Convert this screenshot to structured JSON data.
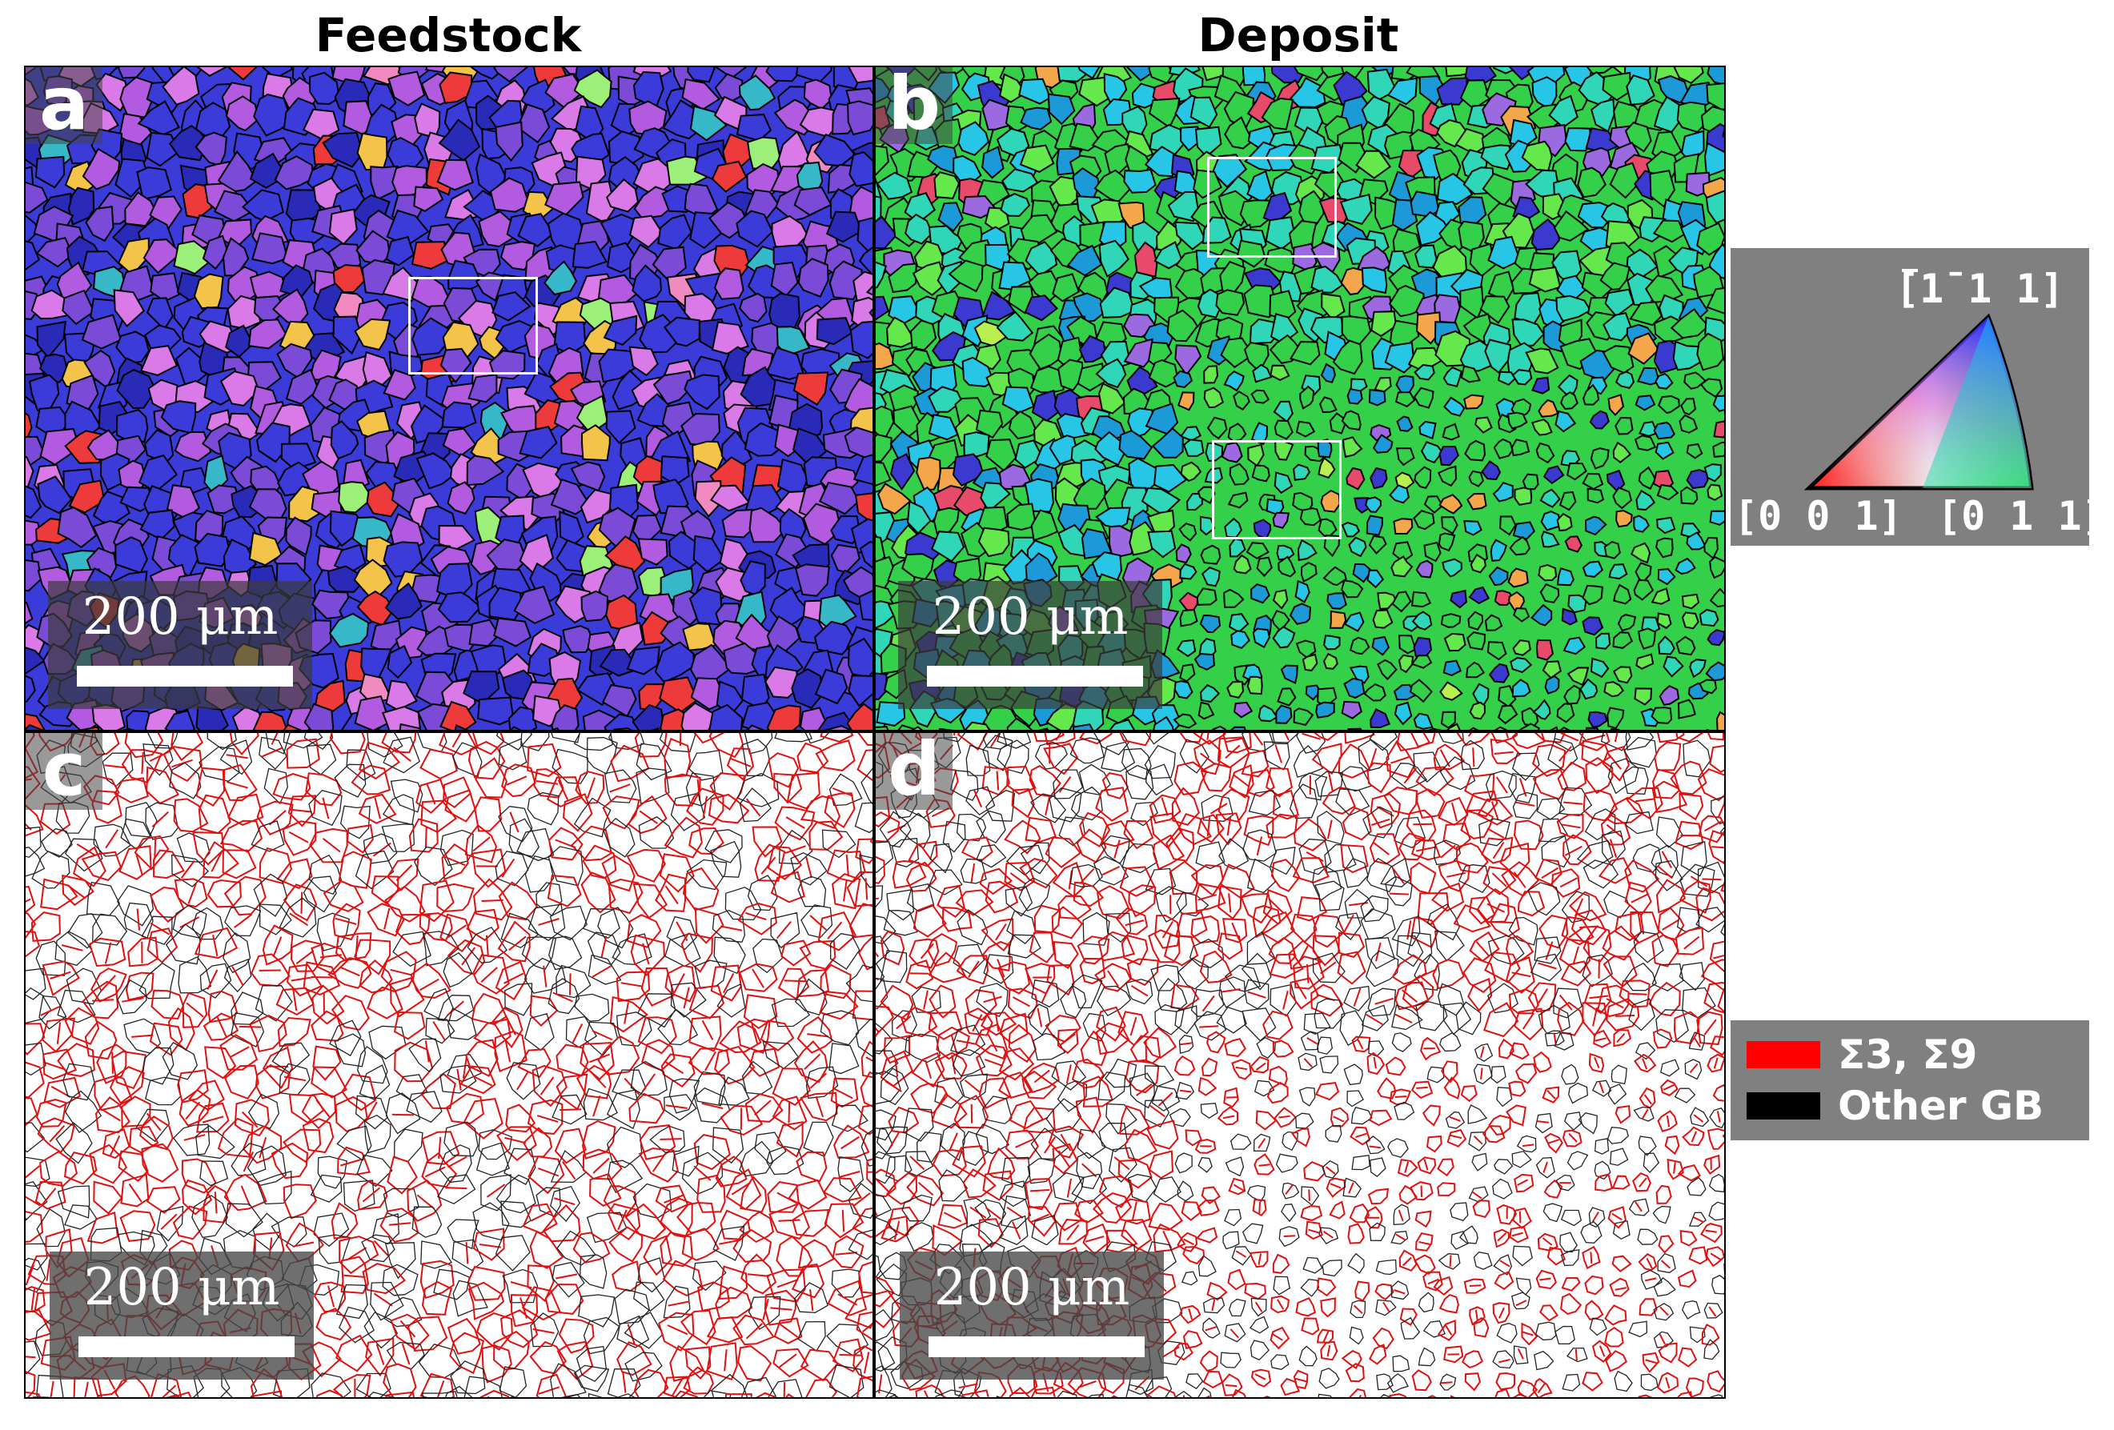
{
  "columns": {
    "left_title": "Feedstock",
    "right_title": "Deposit"
  },
  "panels": [
    {
      "letter": "a",
      "scale": "200 μm",
      "kind": "ipf",
      "palette": [
        "#3b3bd9",
        "#7b4bd8",
        "#b25be0",
        "#d97ae8",
        "#2a2ab8",
        "#ee3a3a",
        "#f4c44a",
        "#36b8c8",
        "#9cf07a",
        "#f08ac0"
      ]
    },
    {
      "letter": "b",
      "scale": "200 μm",
      "kind": "ipf",
      "palette": [
        "#35d04a",
        "#2fd6b8",
        "#28c6e6",
        "#64e84c",
        "#1c9ad8",
        "#3a3ad0",
        "#9b6ae0",
        "#f3a64a",
        "#e84a6a",
        "#b8f050"
      ]
    },
    {
      "letter": "c",
      "scale": "200 μm",
      "kind": "gb"
    },
    {
      "letter": "d",
      "scale": "200 μm",
      "kind": "gb"
    }
  ],
  "ipf_key": {
    "top_label": "[1̄ 1 1]",
    "left_label": "[0 0 1]",
    "right_label": "[0 1 1]"
  },
  "gb_legend": {
    "items": [
      {
        "label": "Σ3, Σ9",
        "color": "#ff0000"
      },
      {
        "label": "Other GB",
        "color": "#000000"
      }
    ]
  }
}
